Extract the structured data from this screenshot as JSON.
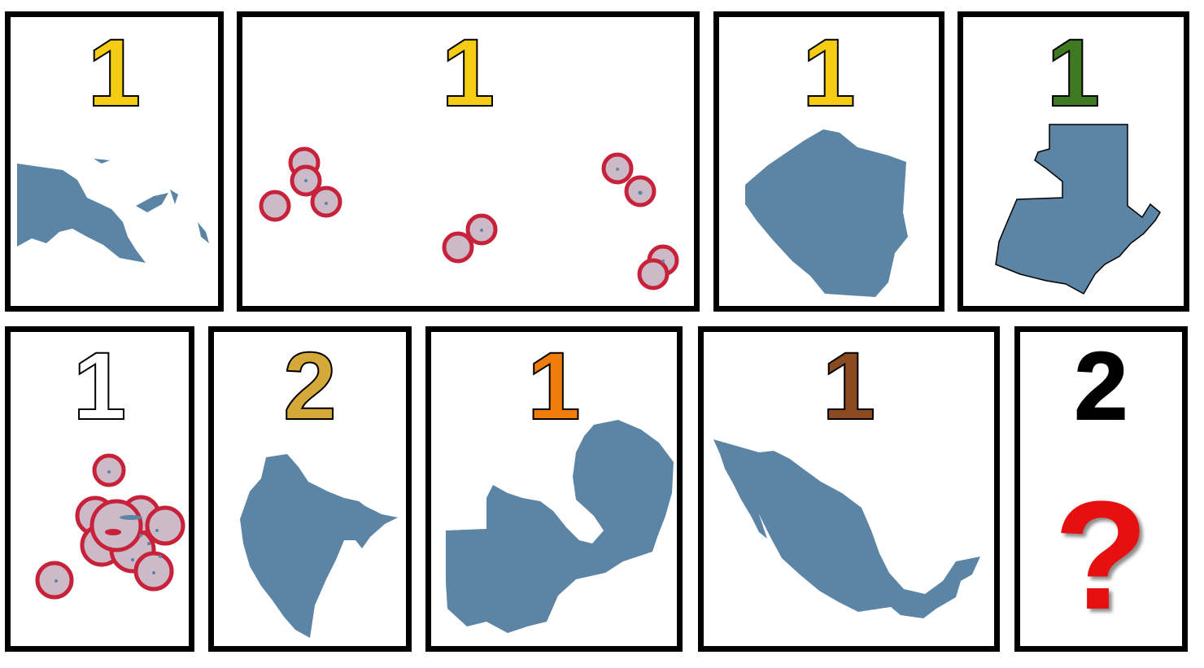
{
  "cards": [
    {
      "id": "png",
      "label": "1",
      "color": "#f5cc14"
    },
    {
      "id": "islands",
      "label": "1",
      "color": "#f5cc14"
    },
    {
      "id": "zimbabwe",
      "label": "1",
      "color": "#f5cc14"
    },
    {
      "id": "guatemala",
      "label": "1",
      "color": "#3f7a22"
    },
    {
      "id": "atoll",
      "label": "1",
      "color": "#ffffff"
    },
    {
      "id": "montenegro",
      "label": "2",
      "color": "#d4a93a"
    },
    {
      "id": "zambia",
      "label": "1",
      "color": "#f07c0c"
    },
    {
      "id": "mexico",
      "label": "1",
      "color": "#8b4a1f"
    },
    {
      "id": "mystery",
      "label": "2",
      "color": "#000000"
    }
  ],
  "mystery": {
    "symbol": "?",
    "color": "#e61010"
  },
  "shape_fill": "#5b84a5",
  "marker_fill": "#ccbac9",
  "marker_stroke": "#c8213a"
}
